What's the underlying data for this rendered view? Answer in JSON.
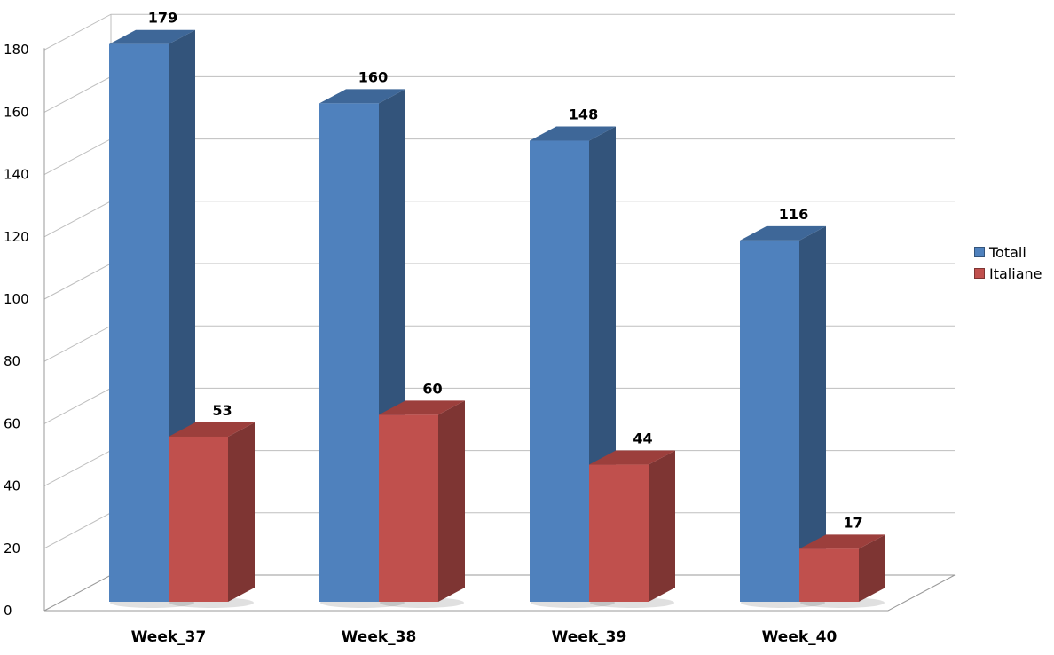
{
  "chart_data": {
    "type": "bar",
    "title": "",
    "xlabel": "",
    "ylabel": "",
    "categories": [
      "Week_37",
      "Week_38",
      "Week_39",
      "Week_40"
    ],
    "series": [
      {
        "name": "Totali",
        "values": [
          179,
          160,
          148,
          116
        ]
      },
      {
        "name": "Italiane",
        "values": [
          53,
          60,
          44,
          17
        ]
      }
    ],
    "ylim": [
      0,
      180
    ],
    "yticks": [
      "0",
      "20",
      "40",
      "60",
      "80",
      "100",
      "120",
      "140",
      "160",
      "180"
    ],
    "grid": true,
    "three_d": true,
    "data_labels": true,
    "legend_position": "right",
    "colors": {
      "Totali": {
        "front": "#4f81bd",
        "side": "#33547b",
        "top": "#3e6798"
      },
      "Italiane": {
        "front": "#c0504d",
        "side": "#7e3533",
        "top": "#9c3f3c"
      },
      "gridline": "#bfbfbf",
      "axis": "#9a9a9a"
    }
  }
}
